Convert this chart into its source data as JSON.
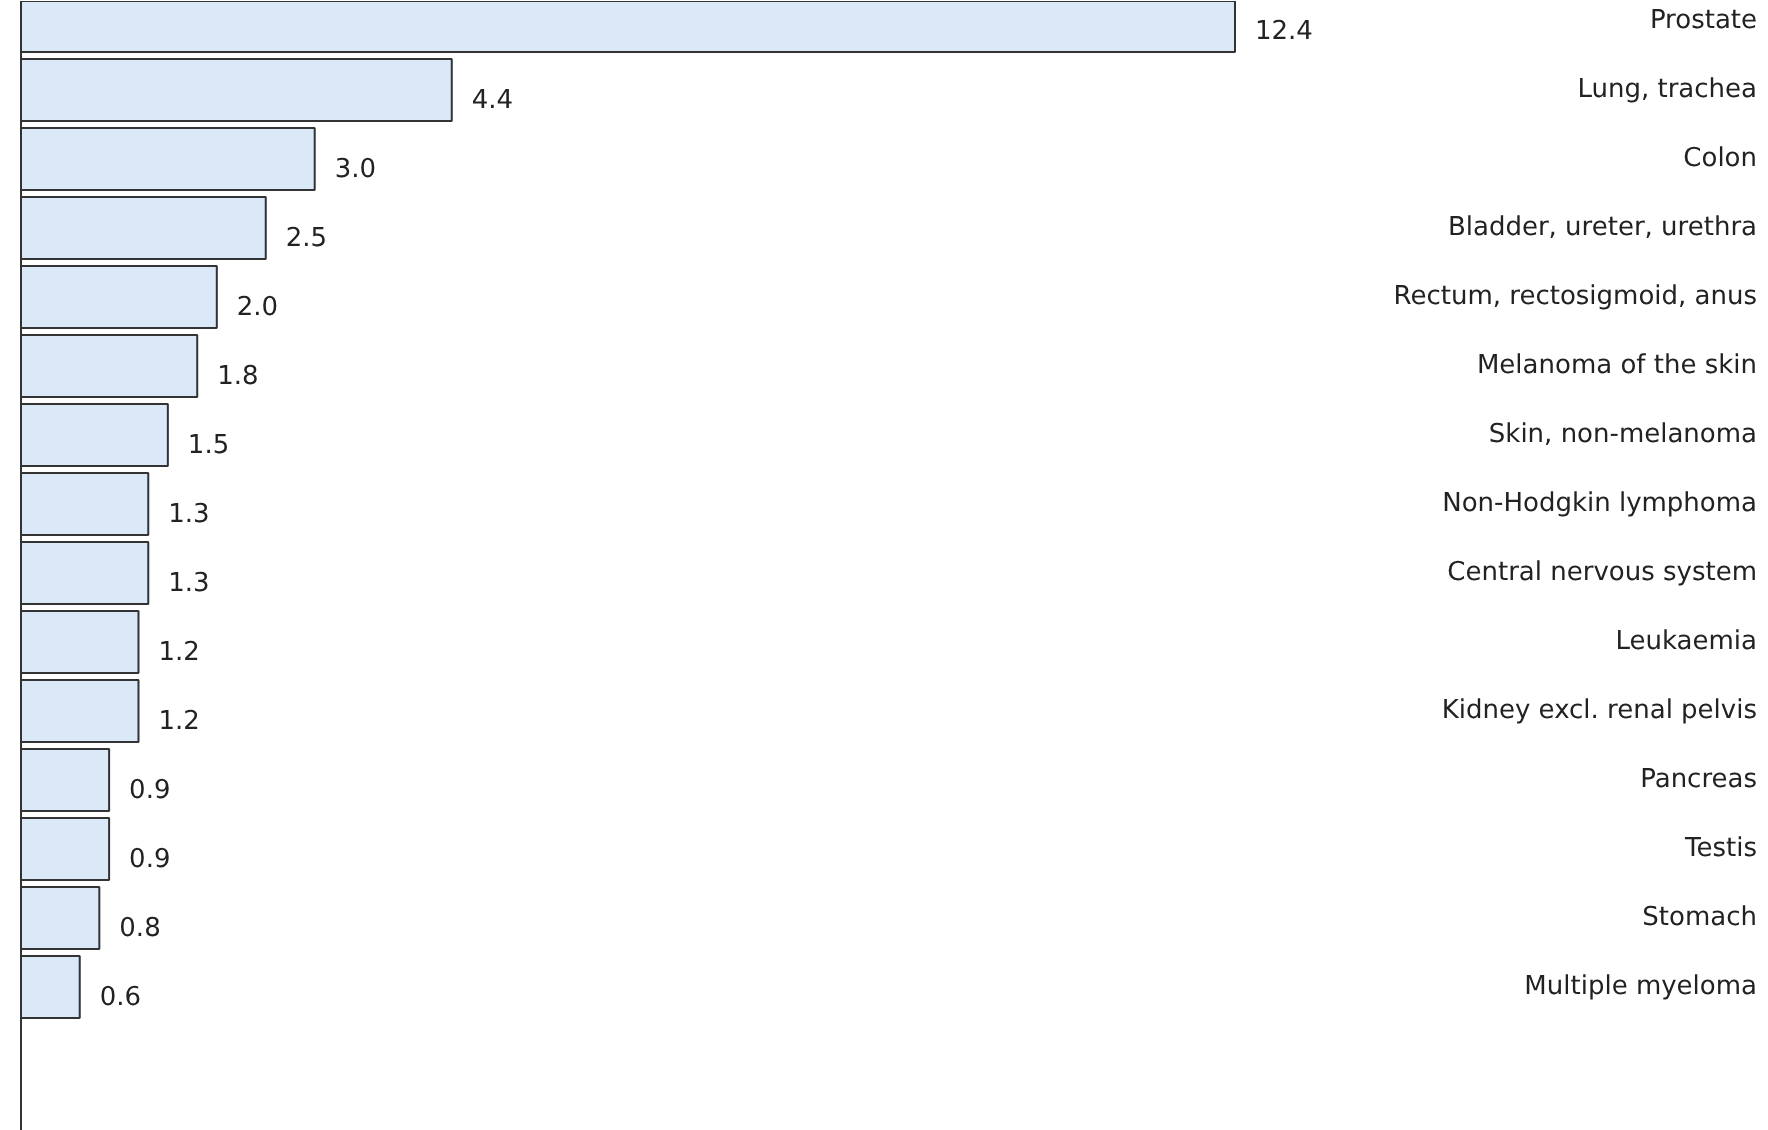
{
  "chart_data": {
    "type": "bar",
    "orientation": "horizontal",
    "categories": [
      "Prostate",
      "Lung, trachea",
      "Colon",
      "Bladder, ureter, urethra",
      "Rectum, rectosigmoid, anus",
      "Melanoma of the skin",
      "Skin, non-melanoma",
      "Non-Hodgkin lymphoma",
      "Central nervous system",
      "Leukaemia",
      "Kidney excl. renal pelvis",
      "Pancreas",
      "Testis",
      "Stomach",
      "Multiple myeloma"
    ],
    "values": [
      12.4,
      4.4,
      3.0,
      2.5,
      2.0,
      1.8,
      1.5,
      1.3,
      1.3,
      1.2,
      1.2,
      0.9,
      0.9,
      0.8,
      0.6
    ],
    "value_labels": [
      "12.4",
      "4.4",
      "3.0",
      "2.5",
      "2.0",
      "1.8",
      "1.5",
      "1.3",
      "1.3",
      "1.2",
      "1.2",
      "0.9",
      "0.9",
      "0.8",
      "0.6"
    ],
    "color": "#dbe8f8",
    "tick_labels": false,
    "grid": false
  }
}
